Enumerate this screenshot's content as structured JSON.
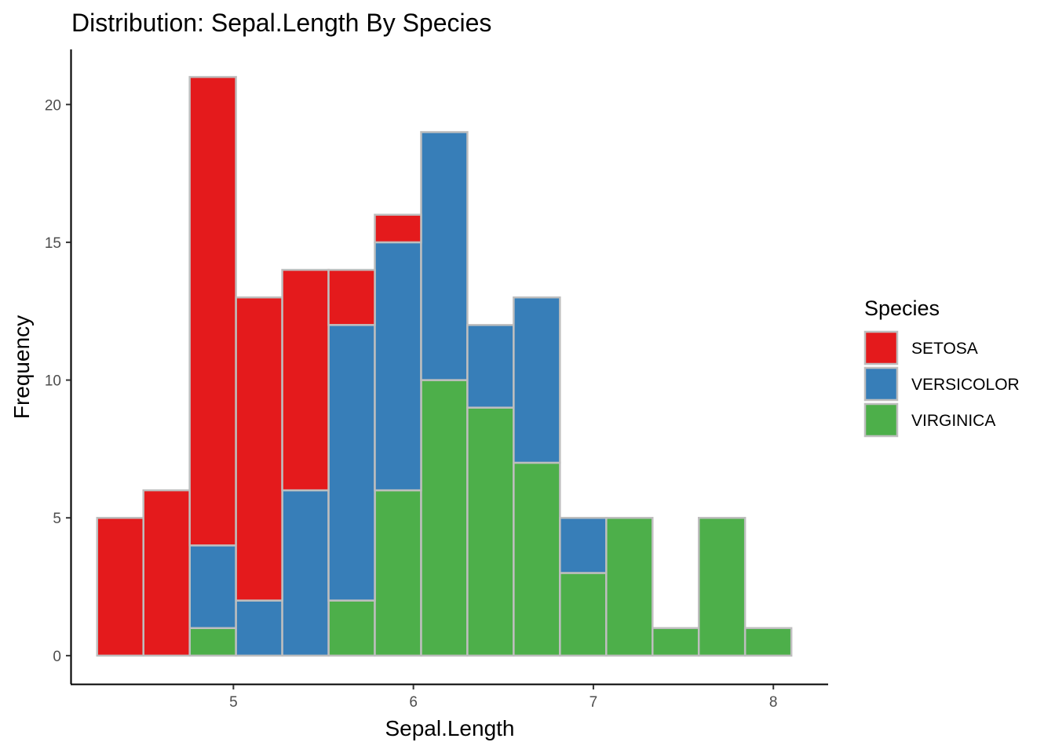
{
  "chart_data": {
    "type": "bar",
    "subtype": "stacked-histogram",
    "title": "Distribution: Sepal.Length By Species",
    "xlabel": "Sepal.Length",
    "ylabel": "Frequency",
    "xlim": [
      4.1,
      8.3
    ],
    "ylim": [
      -1,
      22
    ],
    "x_ticks": [
      5,
      6,
      7,
      8
    ],
    "y_ticks": [
      0,
      5,
      10,
      15,
      20
    ],
    "bin_width": 0.2571,
    "bin_starts": [
      4.2429,
      4.5,
      4.7571,
      5.0143,
      5.2714,
      5.5286,
      5.7857,
      6.0429,
      6.3,
      6.5571,
      6.8143,
      7.0714,
      7.3286,
      7.5857,
      7.8429
    ],
    "legend": {
      "title": "Species",
      "position": "right"
    },
    "series": [
      {
        "name": "VIRGINICA",
        "color": "#4DAF4A",
        "values": [
          0,
          0,
          1,
          0,
          0,
          2,
          6,
          10,
          9,
          7,
          3,
          5,
          1,
          5,
          1
        ]
      },
      {
        "name": "VERSICOLOR",
        "color": "#377EB8",
        "values": [
          0,
          0,
          3,
          2,
          6,
          10,
          9,
          9,
          3,
          6,
          2,
          0,
          0,
          0,
          0
        ]
      },
      {
        "name": "SETOSA",
        "color": "#E41A1C",
        "values": [
          5,
          6,
          17,
          11,
          8,
          2,
          1,
          0,
          0,
          0,
          0,
          0,
          0,
          0,
          0
        ]
      }
    ],
    "legend_order": [
      "SETOSA",
      "VERSICOLOR",
      "VIRGINICA"
    ],
    "bar_outline_color": "#BEBEBE"
  }
}
